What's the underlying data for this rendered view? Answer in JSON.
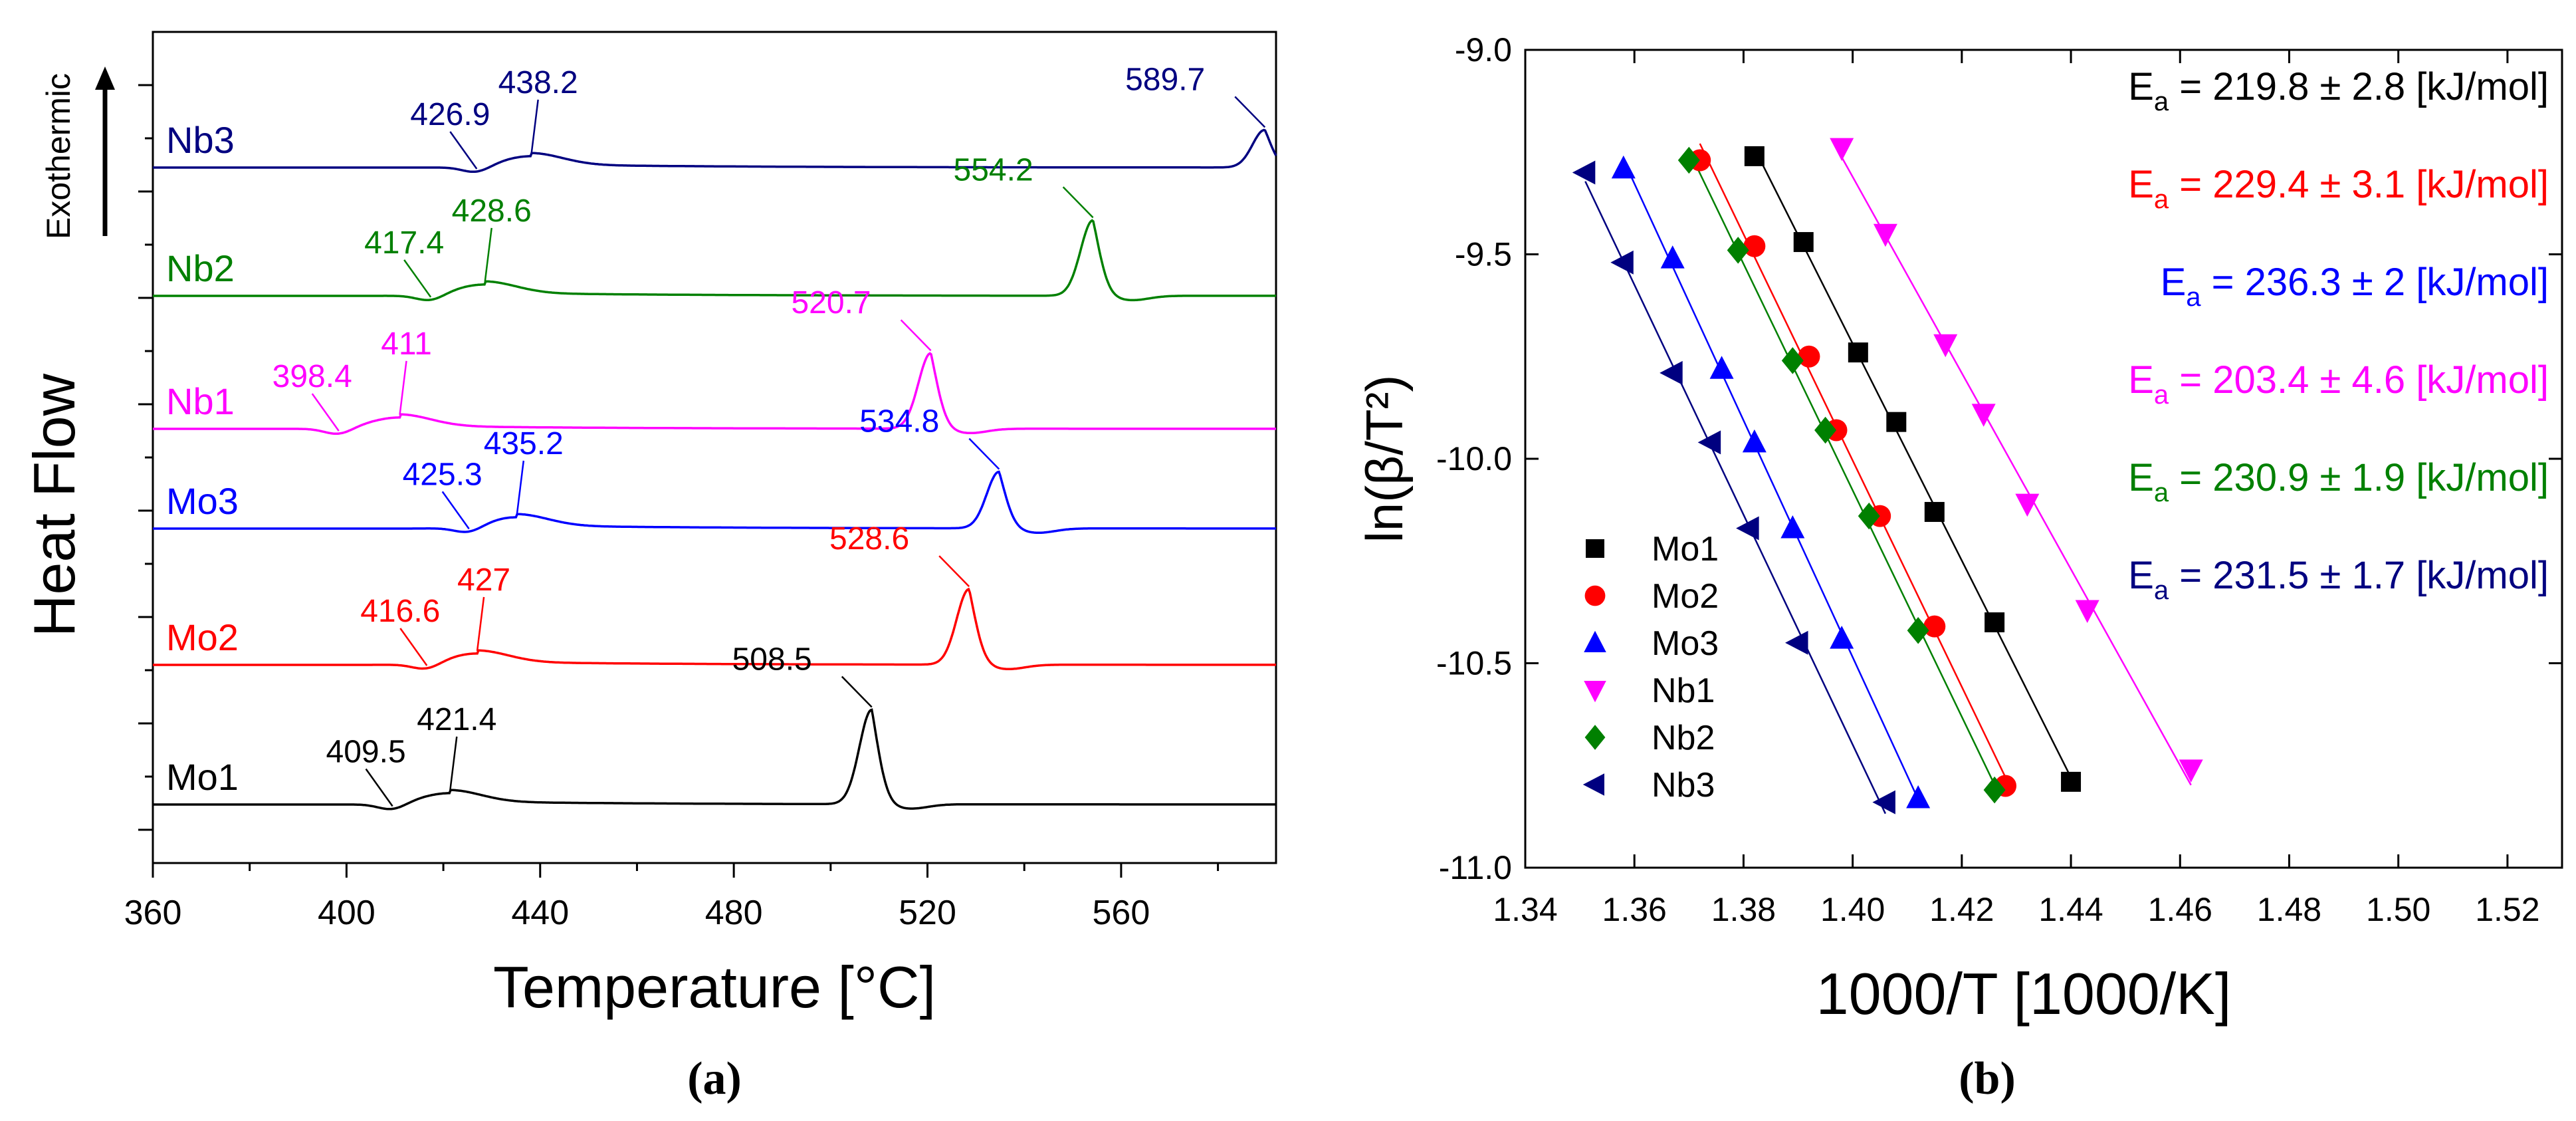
{
  "subfigure_labels": [
    "(a)",
    "(b)"
  ],
  "chart_data": [
    {
      "type": "line",
      "title": "",
      "xlabel": "Temperature [°C]",
      "ylabel": "Heat Flow",
      "direction_label": "Exothermic",
      "xlim": [
        360,
        592
      ],
      "xticks": [
        360,
        400,
        440,
        480,
        520,
        560
      ],
      "yticks_shown": false,
      "series": [
        {
          "name": "Mo1",
          "color": "#000000",
          "baseline_index": 0,
          "onset": 409.5,
          "peak1": 421.4,
          "peak2": 508.5,
          "peak2_height": 0.75,
          "labels": [
            "409.5",
            "421.4",
            "508.5"
          ]
        },
        {
          "name": "Mo2",
          "color": "#ff0000",
          "baseline_index": 1,
          "onset": 416.6,
          "peak1": 427,
          "peak2": 528.6,
          "peak2_height": 0.6,
          "labels": [
            "416.6",
            "427",
            "528.6"
          ]
        },
        {
          "name": "Mo3",
          "color": "#0000ff",
          "baseline_index": 2,
          "onset": 425.3,
          "peak1": 435.2,
          "peak2": 534.8,
          "peak2_height": 0.45,
          "labels": [
            "425.3",
            "435.2",
            "534.8"
          ]
        },
        {
          "name": "Nb1",
          "color": "#ff00ff",
          "baseline_index": 3,
          "onset": 398.4,
          "peak1": 411,
          "peak2": 520.7,
          "peak2_height": 0.6,
          "labels": [
            "398.4",
            "411",
            "520.7"
          ]
        },
        {
          "name": "Nb2",
          "color": "#008000",
          "baseline_index": 4,
          "onset": 417.4,
          "peak1": 428.6,
          "peak2": 554.2,
          "peak2_height": 0.6,
          "labels": [
            "417.4",
            "428.6",
            "554.2"
          ]
        },
        {
          "name": "Nb3",
          "color": "#000080",
          "baseline_index": 5,
          "onset": 426.9,
          "peak1": 438.2,
          "peak2": 589.7,
          "peak2_height": 0.3,
          "labels": [
            "426.9",
            "438.2",
            "589.7"
          ]
        }
      ]
    },
    {
      "type": "scatter",
      "title": "",
      "xlabel": "1000/T [1000/K]",
      "ylabel": "ln(β/T²)",
      "xlim": [
        1.34,
        1.53
      ],
      "ylim": [
        -11.0,
        -9.0
      ],
      "xticks": [
        "1.34",
        "1.36",
        "1.38",
        "1.40",
        "1.42",
        "1.44",
        "1.46",
        "1.48",
        "1.50",
        "1.52"
      ],
      "yticks": [
        "-9.0",
        "-9.5",
        "-10.0",
        "-10.5",
        "-11.0"
      ],
      "legend_position": "bottom-left",
      "series": [
        {
          "name": "Mo1",
          "color": "#000000",
          "marker": "square",
          "x": [
            1.382,
            1.391,
            1.401,
            1.408,
            1.415,
            1.426,
            1.44
          ],
          "y": [
            -9.26,
            -9.47,
            -9.74,
            -9.91,
            -10.13,
            -10.4,
            -10.79
          ],
          "ea_label": "219.8 ± 2.8 [kJ/mol]"
        },
        {
          "name": "Mo2",
          "color": "#ff0000",
          "marker": "circle",
          "x": [
            1.372,
            1.382,
            1.392,
            1.397,
            1.405,
            1.415,
            1.428
          ],
          "y": [
            -9.27,
            -9.48,
            -9.75,
            -9.93,
            -10.14,
            -10.41,
            -10.8
          ],
          "ea_label": "229.4 ± 3.1  [kJ/mol]"
        },
        {
          "name": "Mo3",
          "color": "#0000ff",
          "marker": "triangle-up",
          "x": [
            1.358,
            1.367,
            1.376,
            1.382,
            1.389,
            1.398,
            1.412
          ],
          "y": [
            -9.29,
            -9.51,
            -9.78,
            -9.96,
            -10.17,
            -10.44,
            -10.83
          ],
          "ea_label": "236.3 ± 2 [kJ/mol]"
        },
        {
          "name": "Nb1",
          "color": "#ff00ff",
          "marker": "triangle-down",
          "x": [
            1.398,
            1.406,
            1.417,
            1.424,
            1.432,
            1.443,
            1.462
          ],
          "y": [
            -9.24,
            -9.45,
            -9.72,
            -9.89,
            -10.11,
            -10.37,
            -10.76
          ],
          "ea_label": "203.4 ± 4.6 [kJ/mol]"
        },
        {
          "name": "Nb2",
          "color": "#008000",
          "marker": "diamond",
          "x": [
            1.37,
            1.379,
            1.389,
            1.395,
            1.403,
            1.412,
            1.426
          ],
          "y": [
            -9.27,
            -9.49,
            -9.76,
            -9.93,
            -10.14,
            -10.42,
            -10.81
          ],
          "ea_label": "230.9 ± 1.9 [kJ/mol]"
        },
        {
          "name": "Nb3",
          "color": "#000080",
          "marker": "triangle-left",
          "x": [
            1.351,
            1.358,
            1.367,
            1.374,
            1.381,
            1.39,
            1.406
          ],
          "y": [
            -9.3,
            -9.52,
            -9.79,
            -9.96,
            -10.17,
            -10.45,
            -10.84
          ],
          "ea_label": "231.5 ± 1.7 [kJ/mol]"
        }
      ],
      "ea_prefix": "E",
      "ea_subscript": "a",
      "ea_eq": " = "
    }
  ]
}
